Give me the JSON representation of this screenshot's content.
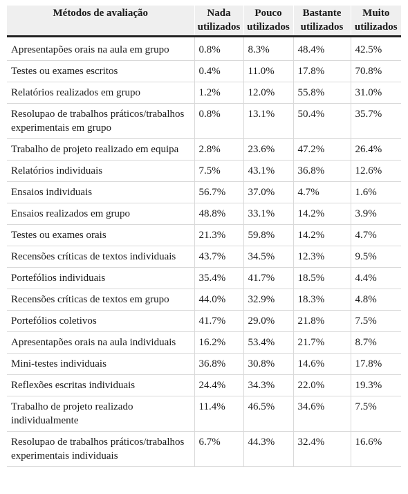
{
  "table": {
    "headers": [
      "Métodos de avaliação",
      "Nada utilizados",
      "Pouco utilizados",
      "Bastante utilizados",
      "Muito utilizados"
    ],
    "rows": [
      [
        "Apresentapões orais na aula em grupo",
        "0.8%",
        "8.3%",
        "48.4%",
        "42.5%"
      ],
      [
        "Testes ou exames escritos",
        "0.4%",
        "11.0%",
        "17.8%",
        "70.8%"
      ],
      [
        "Relatórios realizados em grupo",
        "1.2%",
        "12.0%",
        "55.8%",
        "31.0%"
      ],
      [
        "Resolupao de trabalhos práticos/trabalhos experimentais em grupo",
        "0.8%",
        "13.1%",
        "50.4%",
        "35.7%"
      ],
      [
        "Trabalho de projeto realizado em equipa",
        "2.8%",
        "23.6%",
        "47.2%",
        "26.4%"
      ],
      [
        "Relatórios individuais",
        "7.5%",
        "43.1%",
        "36.8%",
        "12.6%"
      ],
      [
        "Ensaios individuais",
        "56.7%",
        "37.0%",
        "4.7%",
        "1.6%"
      ],
      [
        "Ensaios realizados em grupo",
        "48.8%",
        "33.1%",
        "14.2%",
        "3.9%"
      ],
      [
        "Testes ou exames orais",
        "21.3%",
        "59.8%",
        "14.2%",
        "4.7%"
      ],
      [
        "Recensões críticas de textos individuais",
        "43.7%",
        "34.5%",
        "12.3%",
        "9.5%"
      ],
      [
        "Portefólios individuais",
        "35.4%",
        "41.7%",
        "18.5%",
        "4.4%"
      ],
      [
        "Recensões críticas de textos em grupo",
        "44.0%",
        "32.9%",
        "18.3%",
        "4.8%"
      ],
      [
        "Portefólios coletivos",
        "41.7%",
        "29.0%",
        "21.8%",
        "7.5%"
      ],
      [
        "Apresentapões orais na aula individuais",
        "16.2%",
        "53.4%",
        "21.7%",
        "8.7%"
      ],
      [
        "Mini-testes individuais",
        "36.8%",
        "30.8%",
        "14.6%",
        "17.8%"
      ],
      [
        "Reflexões escritas individuais",
        "24.4%",
        "34.3%",
        "22.0%",
        "19.3%"
      ],
      [
        "Trabalho de projeto realizado individualmente",
        "11.4%",
        "46.5%",
        "34.6%",
        "7.5%"
      ],
      [
        "Resolupao de trabalhos práticos/trabalhos experimentais individuais",
        "6.7%",
        "44.3%",
        "32.4%",
        "16.6%"
      ]
    ]
  }
}
